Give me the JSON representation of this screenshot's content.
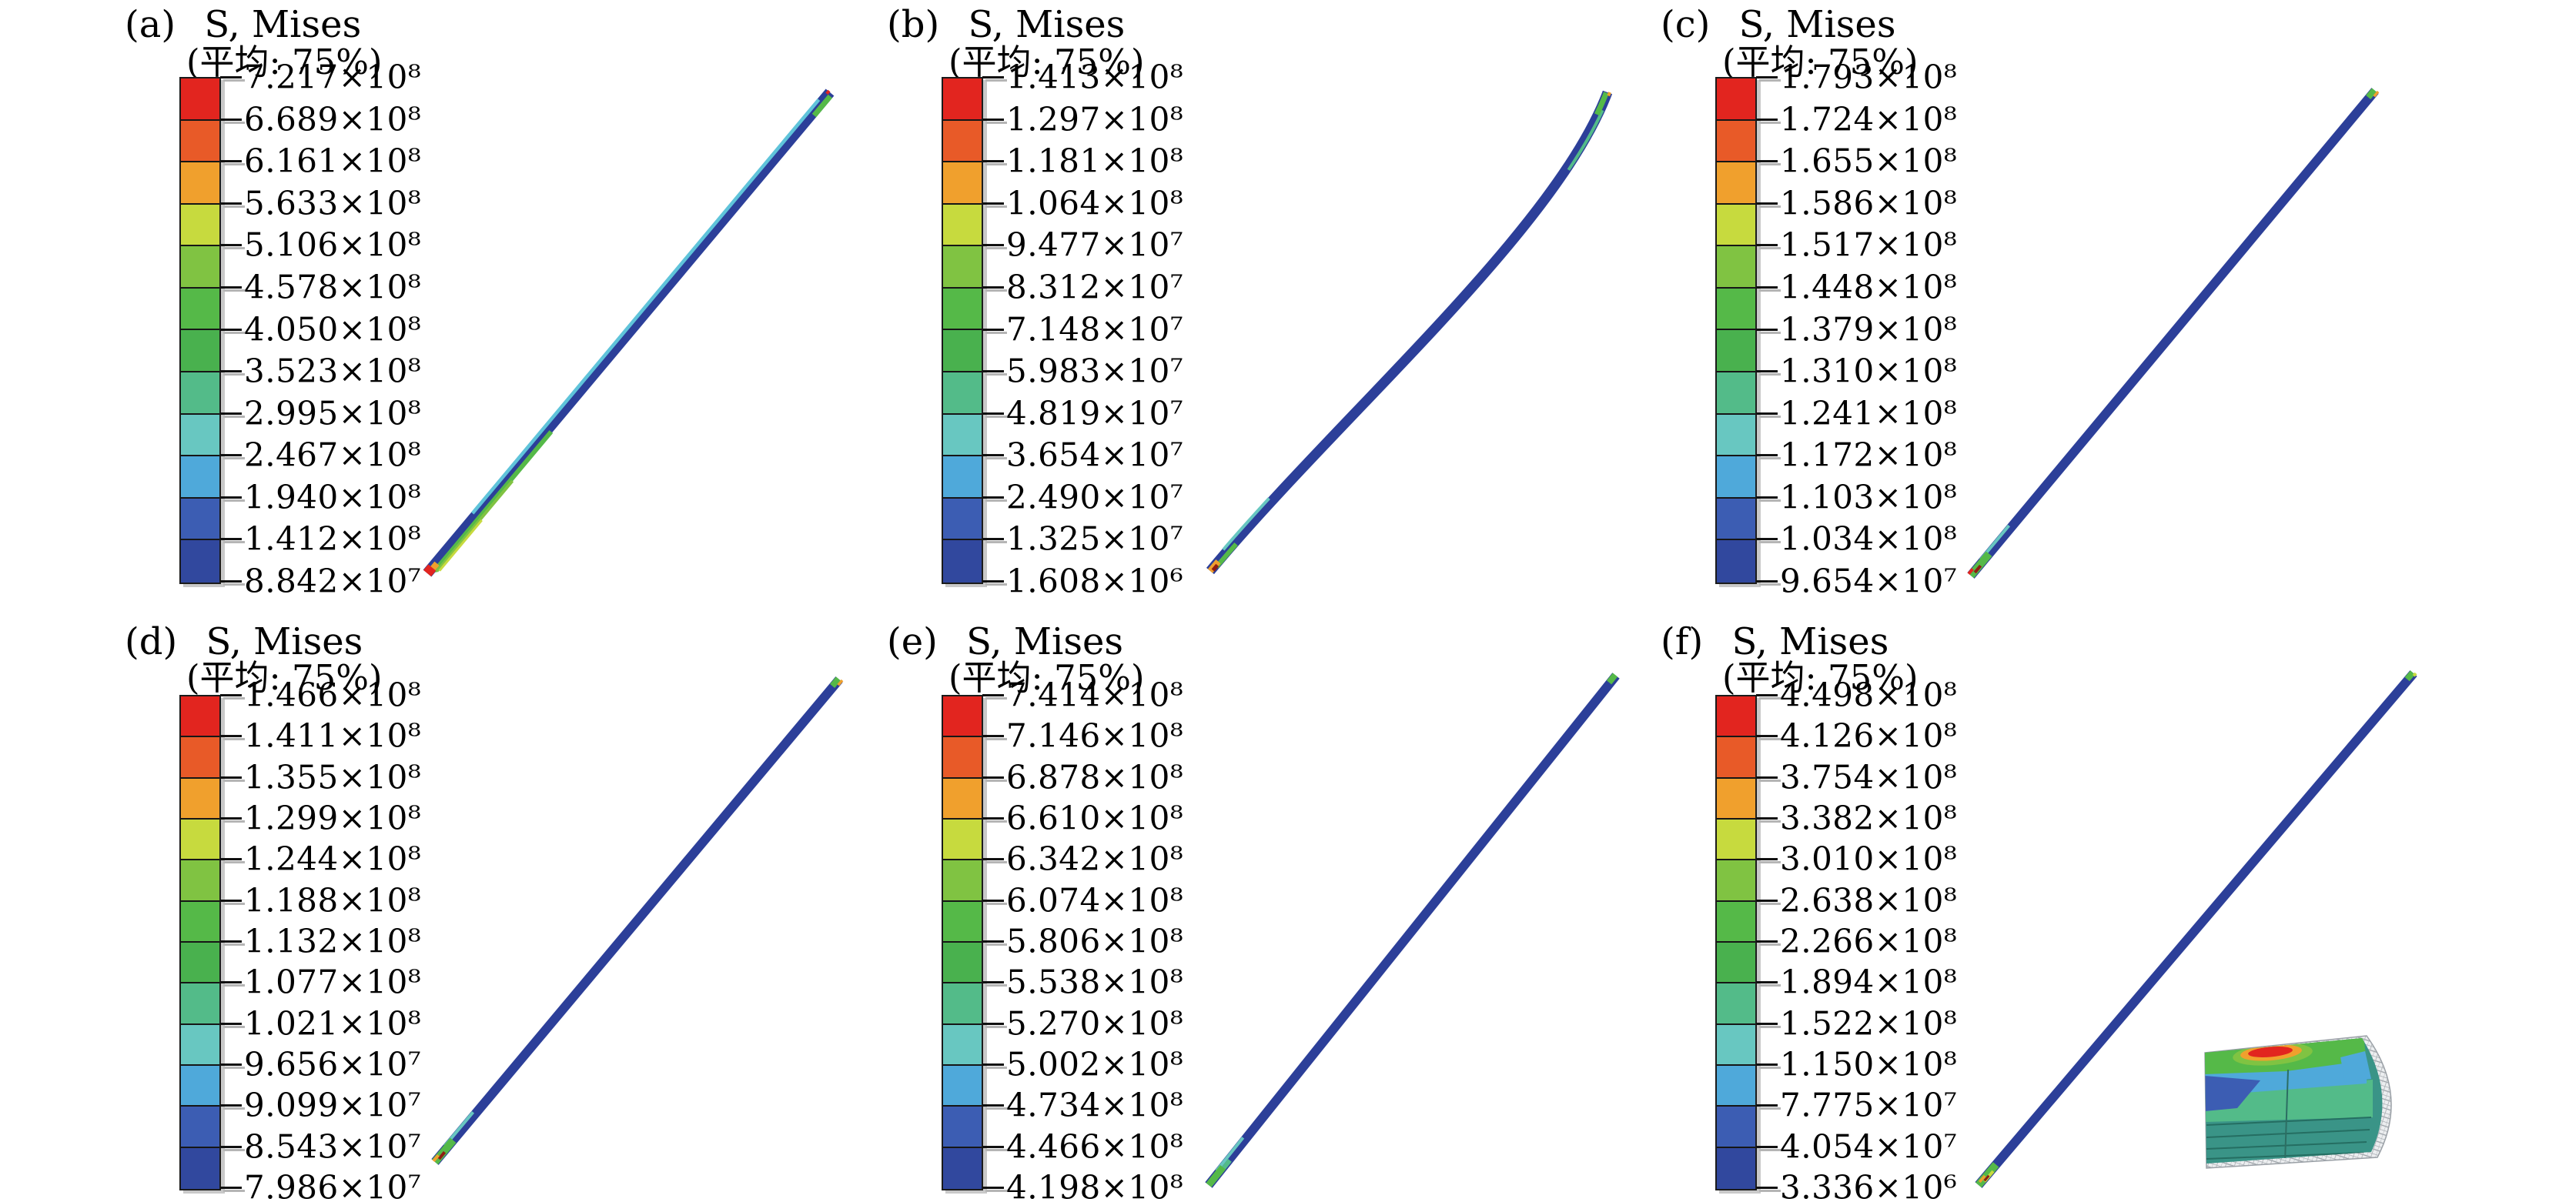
{
  "colors": {
    "background": "#ffffff",
    "body_blue": "#2c3f99",
    "highlight_cyan": "#5fc4da",
    "dark_red": "#8f1d12",
    "wireframe_gray": "#9aa0a6",
    "text": "#000000"
  },
  "colormap": [
    "#e2251f",
    "#e85a28",
    "#f0a02d",
    "#c7da3e",
    "#80c342",
    "#55b948",
    "#49b14e",
    "#53bb89",
    "#68c7c1",
    "#4fa9da",
    "#3c5db3",
    "#31489e"
  ],
  "panels": [
    {
      "id": "a",
      "label": "(a)",
      "title": "S, Mises",
      "subtitle": "(平均: 75%)",
      "legend_values": [
        "7.217×10⁸",
        "6.689×10⁸",
        "6.161×10⁸",
        "5.633×10⁸",
        "5.106×10⁸",
        "4.578×10⁸",
        "4.050×10⁸",
        "3.523×10⁸",
        "2.995×10⁸",
        "2.467×10⁸",
        "1.940×10⁸",
        "1.412×10⁸",
        "8.842×10⁷"
      ]
    },
    {
      "id": "b",
      "label": "(b)",
      "title": "S, Mises",
      "subtitle": "(平均: 75%)",
      "legend_values": [
        "1.413×10⁸",
        "1.297×10⁸",
        "1.181×10⁸",
        "1.064×10⁸",
        "9.477×10⁷",
        "8.312×10⁷",
        "7.148×10⁷",
        "5.983×10⁷",
        "4.819×10⁷",
        "3.654×10⁷",
        "2.490×10⁷",
        "1.325×10⁷",
        "1.608×10⁶"
      ]
    },
    {
      "id": "c",
      "label": "(c)",
      "title": "S, Mises",
      "subtitle": "(平均: 75%)",
      "legend_values": [
        "1.793×10⁸",
        "1.724×10⁸",
        "1.655×10⁸",
        "1.586×10⁸",
        "1.517×10⁸",
        "1.448×10⁸",
        "1.379×10⁸",
        "1.310×10⁸",
        "1.241×10⁸",
        "1.172×10⁸",
        "1.103×10⁸",
        "1.034×10⁸",
        "9.654×10⁷"
      ]
    },
    {
      "id": "d",
      "label": "(d)",
      "title": "S, Mises",
      "subtitle": "(平均: 75%)",
      "legend_values": [
        "1.466×10⁸",
        "1.411×10⁸",
        "1.355×10⁸",
        "1.299×10⁸",
        "1.244×10⁸",
        "1.188×10⁸",
        "1.132×10⁸",
        "1.077×10⁸",
        "1.021×10⁸",
        "9.656×10⁷",
        "9.099×10⁷",
        "8.543×10⁷",
        "7.986×10⁷"
      ]
    },
    {
      "id": "e",
      "label": "(e)",
      "title": "S, Mises",
      "subtitle": "(平均: 75%)",
      "legend_values": [
        "7.414×10⁸",
        "7.146×10⁸",
        "6.878×10⁸",
        "6.610×10⁸",
        "6.342×10⁸",
        "6.074×10⁸",
        "5.806×10⁸",
        "5.538×10⁸",
        "5.270×10⁸",
        "5.002×10⁸",
        "4.734×10⁸",
        "4.466×10⁸",
        "4.198×10⁸"
      ]
    },
    {
      "id": "f",
      "label": "(f)",
      "title": "S, Mises",
      "subtitle": "(平均: 75%)",
      "legend_values": [
        "4.498×10⁸",
        "4.126×10⁸",
        "3.754×10⁸",
        "3.382×10⁸",
        "3.010×10⁸",
        "2.638×10⁸",
        "2.266×10⁸",
        "1.894×10⁸",
        "1.522×10⁸",
        "1.150×10⁸",
        "7.775×10⁷",
        "4.054×10⁷",
        "3.336×10⁶"
      ]
    }
  ],
  "chart_data": [
    {
      "type": "heatmap",
      "panel": "(a)",
      "title": "S, Mises",
      "averaging_subtitle": "(平均: 75%)",
      "legend_position": "left",
      "colormap_bands": 12,
      "contour_levels": [
        721700000,
        668900000,
        616100000,
        563300000,
        510600000,
        457800000,
        405000000,
        352300000,
        299500000,
        246700000,
        194000000,
        141200000,
        88420000
      ],
      "max": 721700000,
      "min": 88420000,
      "geometry": "straight slender rod from lower-left to upper-right; body low-stress blue with cyan upper edge, green/lime along lower third, red-orange hot spot at bottom tip, green cap with red speck at top tip"
    },
    {
      "type": "heatmap",
      "panel": "(b)",
      "title": "S, Mises",
      "averaging_subtitle": "(平均: 75%)",
      "legend_position": "left",
      "colormap_bands": 12,
      "contour_levels": [
        141300000,
        129700000,
        118100000,
        106400000,
        94770000,
        83120000,
        71480000,
        59830000,
        48190000,
        36540000,
        24900000,
        13250000,
        1608000
      ],
      "max": 141300000,
      "min": 1608000,
      "geometry": "gently S-curved slender rod; blue body, cyan-green transition near both ends, orange/dark-red hot spot at bottom tip, green cap with orange speck at top tip"
    },
    {
      "type": "heatmap",
      "panel": "(c)",
      "title": "S, Mises",
      "averaging_subtitle": "(平均: 75%)",
      "legend_position": "left",
      "colormap_bands": 12,
      "contour_levels": [
        179300000,
        172400000,
        165500000,
        158600000,
        151700000,
        144800000,
        137900000,
        131000000,
        124100000,
        117200000,
        110300000,
        103400000,
        96540000
      ],
      "max": 179300000,
      "min": 96540000,
      "geometry": "straight slender blue rod; cyan-green tip with red speck at bottom end, green cap with orange speck at top end"
    },
    {
      "type": "heatmap",
      "panel": "(d)",
      "title": "S, Mises",
      "averaging_subtitle": "(平均: 75%)",
      "legend_position": "left",
      "colormap_bands": 12,
      "contour_levels": [
        146600000,
        141100000,
        135500000,
        129900000,
        124400000,
        118800000,
        113200000,
        107700000,
        102100000,
        96560000,
        90990000,
        85430000,
        79860000
      ],
      "max": 146600000,
      "min": 79860000,
      "geometry": "straight slender blue rod; green tip with orange and dark-red specks at bottom end, green cap with orange speck at top end"
    },
    {
      "type": "heatmap",
      "panel": "(e)",
      "title": "S, Mises",
      "averaging_subtitle": "(平均: 75%)",
      "legend_position": "left",
      "colormap_bands": 12,
      "contour_levels": [
        741400000,
        714600000,
        687800000,
        661000000,
        634200000,
        607400000,
        580600000,
        553800000,
        527000000,
        500200000,
        473400000,
        446600000,
        419800000
      ],
      "max": 741400000,
      "min": 419800000,
      "geometry": "straight slender blue rod; teal-green cap at bottom end, green cap at top end"
    },
    {
      "type": "heatmap",
      "panel": "(f)",
      "title": "S, Mises",
      "averaging_subtitle": "(平均: 75%)",
      "legend_position": "left",
      "colormap_bands": 12,
      "contour_levels": [
        449800000,
        412600000,
        375400000,
        338200000,
        301000000,
        263800000,
        226600000,
        189400000,
        152200000,
        115000000,
        77750000,
        40540000,
        3336000
      ],
      "max": 449800000,
      "min": 3336000,
      "geometry": "straight slender blue rod with green/yellow tip at bottom and green cap at top; magnified inset at lower right shows rod end surface: red/orange stress concentration band at top within green, sky-blue and royal-blue patches, sea-green lower half, gray wireframe mesh on right end and bottom edge"
    }
  ]
}
